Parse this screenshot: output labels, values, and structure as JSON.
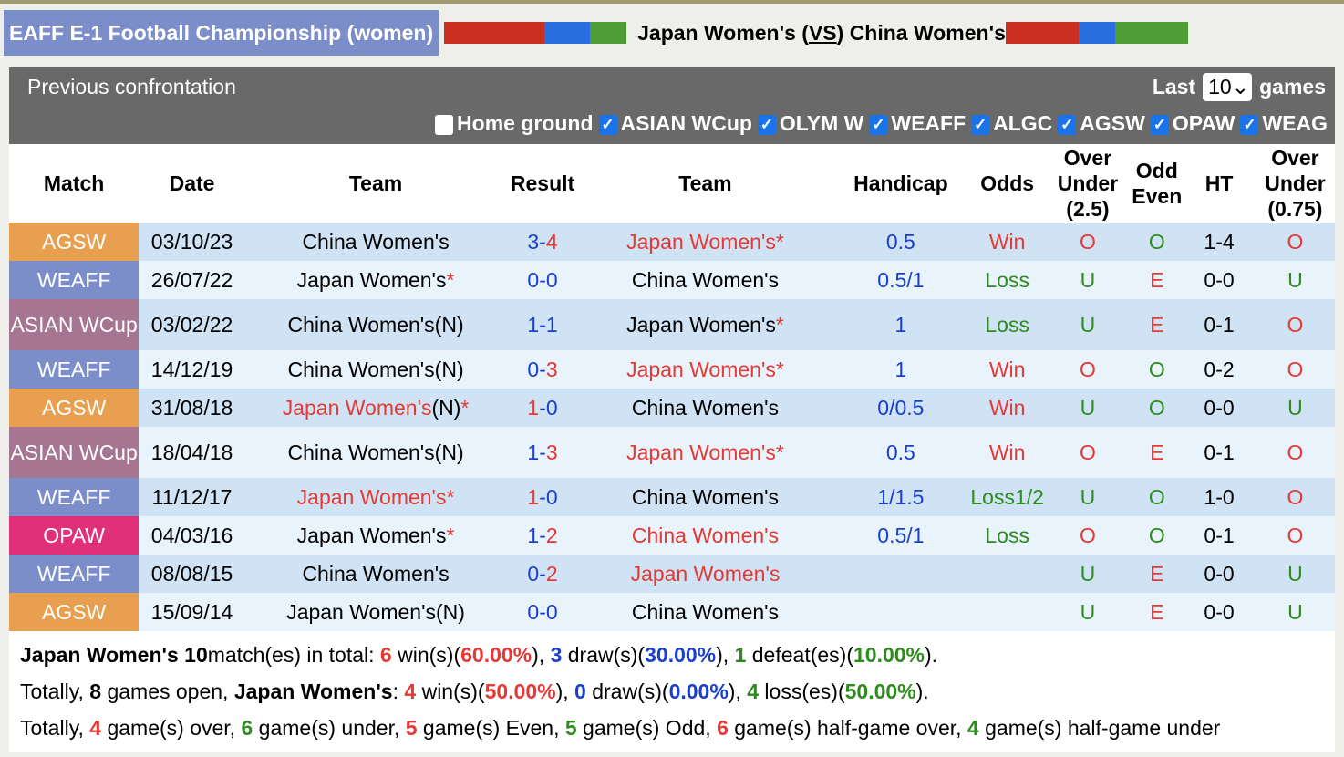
{
  "title": "EAFF E-1 Football Championship (women)",
  "matchup": {
    "home": "Japan Women's",
    "vs": "VS",
    "away": "China Women's"
  },
  "colors": {
    "red": "#e53935",
    "blue": "#1a3fcc",
    "green": "#2e8b1e",
    "AGSW": "#e8a050",
    "WEAFF": "#7b8ec9",
    "ASIAN WCup": "#a57591",
    "OPAW": "#e0307a"
  },
  "panel": {
    "title": "Previous confrontation",
    "last_label": "Last",
    "last_value": "10",
    "games_label": "games"
  },
  "filters": [
    {
      "label": "Home ground",
      "checked": false
    },
    {
      "label": "ASIAN WCup",
      "checked": true
    },
    {
      "label": "OLYM W",
      "checked": true
    },
    {
      "label": "WEAFF",
      "checked": true
    },
    {
      "label": "ALGC",
      "checked": true
    },
    {
      "label": "AGSW",
      "checked": true
    },
    {
      "label": "OPAW",
      "checked": true
    },
    {
      "label": "WEAG",
      "checked": true
    }
  ],
  "columns": [
    "Match",
    "Date",
    "Team",
    "Result",
    "Team",
    "Handicap",
    "Odds",
    "Over Under (2.5)",
    "Odd Even",
    "HT",
    "Over Under (0.75)"
  ],
  "rows": [
    {
      "league": "AGSW",
      "date": "03/10/23",
      "home": "China Women's",
      "hs": "3",
      "as": "4",
      "away": "Japan Women's",
      "astar": "*",
      "hw": "",
      "aw": "r",
      "hc": "0.5",
      "odds": "Win",
      "ou": "O",
      "oe": "O",
      "ht": "1-4",
      "ou2": "O"
    },
    {
      "league": "WEAFF",
      "date": "26/07/22",
      "home": "Japan Women's",
      "hstar": "*",
      "hs": "0",
      "as": "0",
      "away": "China Women's",
      "hc": "0.5/1",
      "odds": "Loss",
      "ou": "U",
      "oe": "E",
      "ht": "0-0",
      "ou2": "U"
    },
    {
      "league": "ASIAN WCup",
      "date": "03/02/22",
      "home": "China Women's(N)",
      "hs": "1",
      "as": "1",
      "away": "Japan Women's",
      "astar": "*",
      "hc": "1",
      "odds": "Loss",
      "ou": "U",
      "oe": "E",
      "ht": "0-1",
      "ou2": "O"
    },
    {
      "league": "WEAFF",
      "date": "14/12/19",
      "home": "China Women's(N)",
      "hs": "0",
      "as": "3",
      "away": "Japan Women's",
      "astar": "*",
      "aw": "r",
      "hc": "1",
      "odds": "Win",
      "ou": "O",
      "oe": "O",
      "ht": "0-2",
      "ou2": "O"
    },
    {
      "league": "AGSW",
      "date": "31/08/18",
      "home": "Japan Women's",
      "hsuffix": "(N)",
      "hstar": "*",
      "hw": "r",
      "hs": "1",
      "as": "0",
      "away": "China Women's",
      "hc": "0/0.5",
      "odds": "Win",
      "ou": "U",
      "oe": "O",
      "ht": "0-0",
      "ou2": "U"
    },
    {
      "league": "ASIAN WCup",
      "date": "18/04/18",
      "home": "China Women's(N)",
      "hs": "1",
      "as": "3",
      "away": "Japan Women's",
      "astar": "*",
      "aw": "r",
      "hc": "0.5",
      "odds": "Win",
      "ou": "O",
      "oe": "E",
      "ht": "0-1",
      "ou2": "O"
    },
    {
      "league": "WEAFF",
      "date": "11/12/17",
      "home": "Japan Women's",
      "hstar": "*",
      "hw": "r",
      "hs": "1",
      "as": "0",
      "away": "China Women's",
      "hc": "1/1.5",
      "odds": "Loss1/2",
      "ou": "U",
      "oe": "O",
      "ht": "1-0",
      "ou2": "O"
    },
    {
      "league": "OPAW",
      "date": "04/03/16",
      "home": "Japan Women's",
      "hstar": "*",
      "hs": "1",
      "as": "2",
      "away": "China Women's",
      "aw": "r",
      "hc": "0.5/1",
      "odds": "Loss",
      "ou": "O",
      "oe": "O",
      "ht": "0-1",
      "ou2": "O"
    },
    {
      "league": "WEAFF",
      "date": "08/08/15",
      "home": "China Women's",
      "hs": "0",
      "as": "2",
      "away": "Japan Women's",
      "aw": "r",
      "hc": "",
      "odds": "",
      "ou": "U",
      "oe": "E",
      "ht": "0-0",
      "ou2": "U"
    },
    {
      "league": "AGSW",
      "date": "15/09/14",
      "home": "Japan Women's(N)",
      "hs": "0",
      "as": "0",
      "away": "China Women's",
      "hc": "",
      "odds": "",
      "ou": "U",
      "oe": "E",
      "ht": "0-0",
      "ou2": "U"
    }
  ],
  "summary": [
    [
      [
        "b",
        "Japan Women's 10"
      ],
      [
        "",
        "match(es) in total: "
      ],
      [
        "r",
        "6"
      ],
      [
        "",
        " win(s)("
      ],
      [
        "r",
        "60.00%"
      ],
      [
        "",
        "), "
      ],
      [
        "bl",
        "3"
      ],
      [
        "",
        " draw(s)("
      ],
      [
        "bl",
        "30.00%"
      ],
      [
        "",
        "), "
      ],
      [
        "g",
        "1"
      ],
      [
        "",
        " defeat(es)("
      ],
      [
        "g",
        "10.00%"
      ],
      [
        "",
        ")."
      ]
    ],
    [
      [
        "",
        "Totally, "
      ],
      [
        "b",
        "8"
      ],
      [
        "",
        " games open, "
      ],
      [
        "b",
        "Japan Women's"
      ],
      [
        "",
        ": "
      ],
      [
        "r",
        "4"
      ],
      [
        "",
        " win(s)("
      ],
      [
        "r",
        "50.00%"
      ],
      [
        "",
        "), "
      ],
      [
        "bl",
        "0"
      ],
      [
        "",
        " draw(s)("
      ],
      [
        "bl",
        "0.00%"
      ],
      [
        "",
        "), "
      ],
      [
        "g",
        "4"
      ],
      [
        "",
        " loss(es)("
      ],
      [
        "g",
        "50.00%"
      ],
      [
        "",
        ")."
      ]
    ],
    [
      [
        "",
        "Totally, "
      ],
      [
        "r",
        "4"
      ],
      [
        "",
        " game(s) over, "
      ],
      [
        "g",
        "6"
      ],
      [
        "",
        " game(s) under, "
      ],
      [
        "r",
        "5"
      ],
      [
        "",
        " game(s) Even, "
      ],
      [
        "g",
        "5"
      ],
      [
        "",
        " game(s) Odd, "
      ],
      [
        "r",
        "6"
      ],
      [
        "",
        " game(s) half-game over, "
      ],
      [
        "g",
        "4"
      ],
      [
        "",
        " game(s) half-game under"
      ]
    ]
  ]
}
